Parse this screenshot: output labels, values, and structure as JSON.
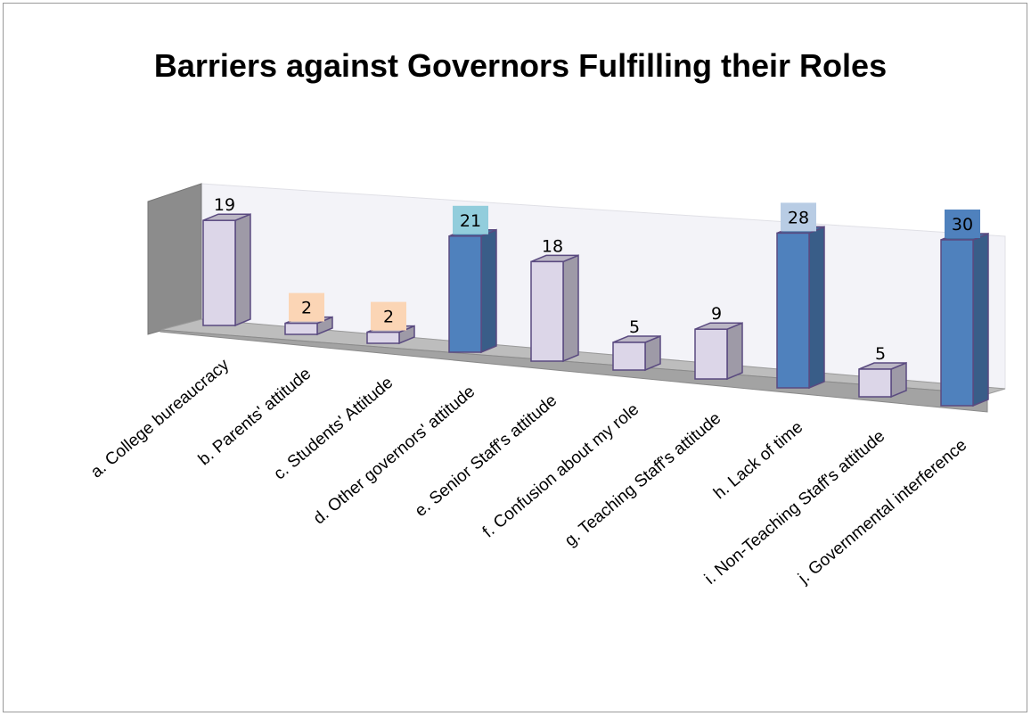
{
  "chart_data": {
    "type": "bar",
    "title": "Barriers against Governors Fulfilling their Roles",
    "xlabel": "",
    "ylabel": "",
    "categories": [
      "a. College bureaucracy",
      "b. Parents' attitude",
      "c. Students' Attitude",
      "d. Other governors' attitude",
      "e. Senior Staff's attitude",
      "f. Confusion about my role",
      "g. Teaching Staff's attitude",
      "h. Lack of time",
      "i. Non-Teaching Staff's attitude",
      "j. Governmental interference"
    ],
    "values": [
      19,
      2,
      2,
      21,
      18,
      5,
      9,
      28,
      5,
      30
    ],
    "bar_colors": [
      "#dcd6e8",
      "#dcd6e8",
      "#dcd6e8",
      "#4f81bd",
      "#dcd6e8",
      "#dcd6e8",
      "#dcd6e8",
      "#4f81bd",
      "#dcd6e8",
      "#4f81bd"
    ],
    "label_backgrounds": [
      "",
      "#fbd5b5",
      "#fbd5b5",
      "#92cddc",
      "",
      "",
      "",
      "#b8cce4",
      "",
      "#4f81bd"
    ],
    "legend": "none",
    "grid": false,
    "style": "3d-column"
  }
}
